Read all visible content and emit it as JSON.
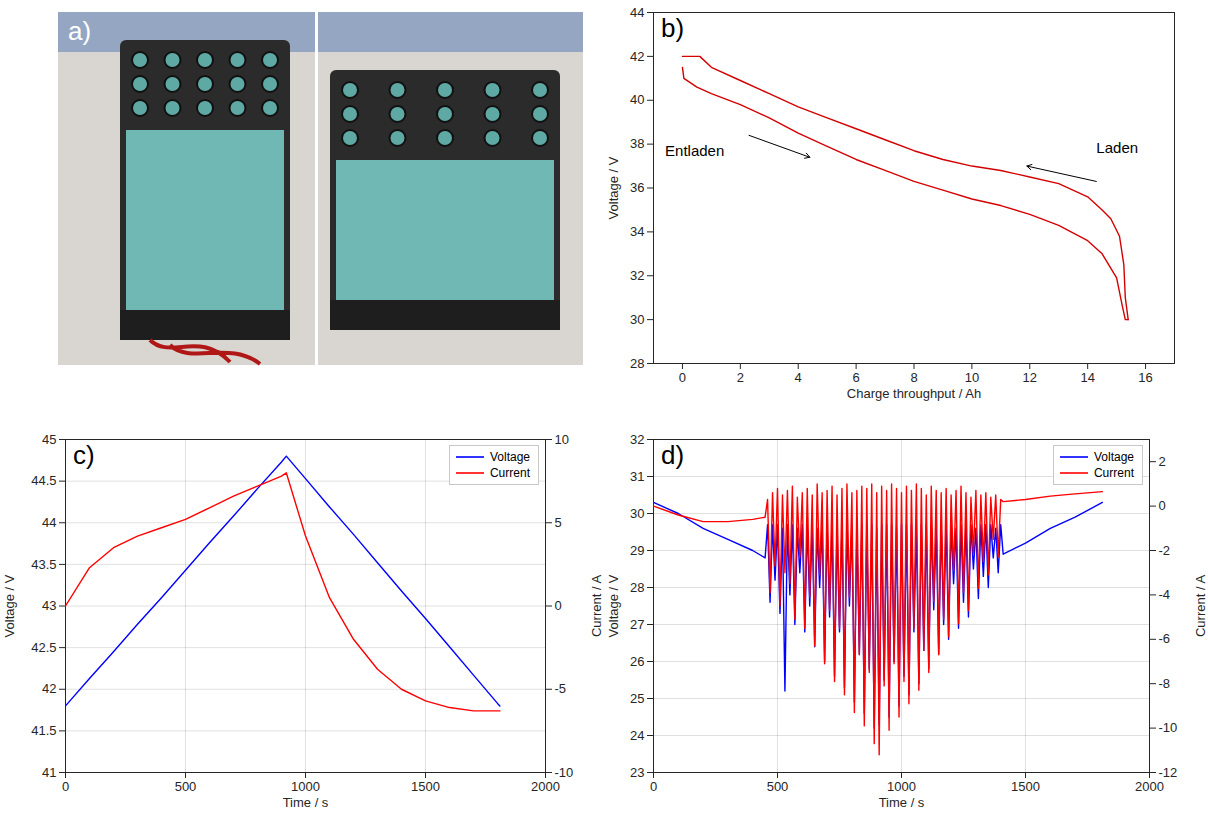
{
  "chart_data": [
    {
      "type": "image",
      "panel": "a)"
    },
    {
      "type": "line",
      "panel": "b)",
      "x_label": "Charge throughput / Ah",
      "y_label": "Voltage / V",
      "xlim": [
        -1,
        17
      ],
      "xticks": [
        0,
        2,
        4,
        6,
        8,
        10,
        12,
        14,
        16
      ],
      "ylim": [
        28,
        44
      ],
      "yticks": [
        28,
        30,
        32,
        34,
        36,
        38,
        40,
        42,
        44
      ],
      "grid": false,
      "series": [
        {
          "color": "#d40000",
          "x": [
            0,
            0.05,
            0.5,
            1,
            2,
            3,
            4,
            5,
            6,
            7,
            8,
            9,
            10,
            11,
            12,
            13,
            14,
            14.5,
            15,
            15.2,
            15.3,
            15.4
          ],
          "values": [
            41.5,
            41.0,
            40.6,
            40.3,
            39.8,
            39.2,
            38.5,
            37.9,
            37.3,
            36.8,
            36.3,
            35.9,
            35.5,
            35.2,
            34.8,
            34.3,
            33.6,
            33.0,
            31.9,
            30.6,
            30.0,
            30.0
          ]
        },
        {
          "color": "#d40000",
          "x": [
            15.4,
            15.3,
            15.25,
            15.1,
            14.8,
            14.5,
            14,
            13,
            12,
            11,
            10,
            9,
            8,
            7,
            6,
            5,
            4,
            3,
            2,
            1,
            0.6,
            0
          ],
          "values": [
            30.0,
            31.0,
            32.5,
            33.8,
            34.6,
            35.0,
            35.6,
            36.2,
            36.5,
            36.8,
            37.0,
            37.3,
            37.7,
            38.2,
            38.7,
            39.2,
            39.7,
            40.3,
            40.9,
            41.5,
            42.0,
            42.0
          ]
        }
      ],
      "annotations": [
        {
          "text": "Entladen",
          "x": -0.6,
          "y": 37.7,
          "arrow": {
            "x1": 2.3,
            "y1": 38.4,
            "x2": 4.4,
            "y2": 37.4
          }
        },
        {
          "text": "Laden",
          "x": 14.3,
          "y": 37.8,
          "arrow": {
            "x1": 14.3,
            "y1": 36.3,
            "x2": 11.9,
            "y2": 37.0
          }
        }
      ]
    },
    {
      "type": "line",
      "panel": "c)",
      "x_label": "Time / s",
      "y_label": "Voltage / V",
      "y2_label": "Current / A",
      "xlim": [
        0,
        2000
      ],
      "xticks": [
        0,
        500,
        1000,
        1500,
        2000
      ],
      "ylim": [
        41,
        45
      ],
      "yticks": [
        41,
        41.5,
        42,
        42.5,
        43,
        43.5,
        44,
        44.5,
        45
      ],
      "y2lim": [
        -10,
        10
      ],
      "y2ticks": [
        -10,
        -5,
        0,
        5,
        10
      ],
      "grid": true,
      "legend": "top-right",
      "x": [
        0,
        100,
        200,
        300,
        400,
        500,
        600,
        700,
        800,
        900,
        920,
        1000,
        1100,
        1200,
        1300,
        1400,
        1500,
        1600,
        1700,
        1800,
        1810
      ],
      "series": [
        {
          "name": "Voltage",
          "color": "#0000ff",
          "values": [
            41.8,
            42.13,
            42.45,
            42.78,
            43.1,
            43.43,
            43.76,
            44.08,
            44.41,
            44.73,
            44.8,
            44.53,
            44.19,
            43.86,
            43.52,
            43.18,
            42.85,
            42.51,
            42.17,
            41.83,
            41.8
          ]
        },
        {
          "name": "Current",
          "color": "#ff0000",
          "axis": "y2",
          "values": [
            0,
            2.3,
            3.5,
            4.2,
            4.7,
            5.2,
            5.9,
            6.6,
            7.2,
            7.8,
            8.0,
            4.2,
            0.5,
            -2.0,
            -3.8,
            -5.0,
            -5.7,
            -6.1,
            -6.3,
            -6.3,
            -6.3
          ]
        }
      ]
    },
    {
      "type": "line",
      "panel": "d)",
      "x_label": "Time / s",
      "y_label": "Voltage / V",
      "y2_label": "Current / A",
      "xlim": [
        0,
        2000
      ],
      "xticks": [
        0,
        500,
        1000,
        1500,
        2000
      ],
      "ylim": [
        23,
        32
      ],
      "yticks": [
        23,
        24,
        25,
        26,
        27,
        28,
        29,
        30,
        31,
        32
      ],
      "y2lim": [
        -12,
        3
      ],
      "y2ticks": [
        -12,
        -10,
        -8,
        -6,
        -4,
        -2,
        0,
        2
      ],
      "grid": true,
      "legend": "top-right",
      "x": [
        0,
        100,
        200,
        300,
        400,
        450,
        460,
        470,
        480,
        490,
        500,
        510,
        520,
        530,
        540,
        550,
        560,
        570,
        580,
        590,
        600,
        610,
        620,
        630,
        640,
        650,
        660,
        670,
        680,
        690,
        700,
        710,
        720,
        730,
        740,
        750,
        760,
        770,
        780,
        790,
        800,
        810,
        820,
        830,
        840,
        850,
        860,
        870,
        880,
        890,
        900,
        910,
        920,
        930,
        940,
        950,
        960,
        970,
        980,
        990,
        1000,
        1010,
        1020,
        1030,
        1040,
        1050,
        1060,
        1070,
        1080,
        1090,
        1100,
        1110,
        1120,
        1130,
        1140,
        1150,
        1160,
        1170,
        1180,
        1190,
        1200,
        1210,
        1220,
        1230,
        1240,
        1250,
        1260,
        1270,
        1280,
        1290,
        1300,
        1310,
        1320,
        1330,
        1340,
        1350,
        1360,
        1370,
        1380,
        1390,
        1400,
        1410,
        1500,
        1600,
        1700,
        1810
      ],
      "series": [
        {
          "name": "Voltage",
          "color": "#0000ff",
          "values": [
            30.3,
            30.0,
            29.6,
            29.3,
            29.0,
            28.8,
            29.7,
            27.6,
            29.7,
            28.2,
            29.7,
            27.3,
            29.6,
            25.2,
            29.7,
            27.8,
            29.7,
            27.0,
            29.6,
            28.4,
            29.7,
            26.8,
            29.7,
            27.5,
            29.7,
            26.4,
            29.6,
            28.0,
            29.7,
            26.0,
            29.7,
            27.2,
            29.7,
            25.6,
            29.6,
            26.8,
            29.7,
            25.3,
            29.7,
            27.5,
            29.7,
            24.9,
            29.6,
            26.2,
            29.7,
            24.6,
            29.7,
            25.8,
            29.7,
            24.2,
            29.6,
            24.3,
            29.7,
            25.5,
            29.7,
            24.5,
            29.7,
            26.0,
            29.6,
            24.8,
            29.7,
            25.6,
            29.7,
            25.1,
            29.7,
            26.8,
            29.6,
            25.4,
            29.7,
            26.3,
            29.7,
            25.8,
            29.7,
            27.4,
            29.6,
            26.2,
            29.7,
            27.0,
            29.7,
            26.6,
            29.7,
            28.1,
            29.6,
            26.9,
            29.7,
            27.6,
            29.7,
            27.2,
            29.7,
            28.5,
            29.6,
            27.7,
            29.7,
            28.3,
            29.7,
            28.0,
            29.7,
            28.8,
            29.6,
            28.4,
            29.7,
            28.9,
            29.2,
            29.6,
            29.9,
            30.3
          ]
        },
        {
          "name": "Current",
          "color": "#ff0000",
          "axis": "y2",
          "values": [
            0,
            -0.4,
            -0.7,
            -0.7,
            -0.6,
            -0.5,
            0.3,
            -3.9,
            0.6,
            -2.7,
            0.8,
            -4.5,
            0.5,
            -3.0,
            0.7,
            -3.5,
            0.9,
            -5.1,
            0.4,
            -2.3,
            0.6,
            -5.5,
            0.8,
            -4.1,
            0.5,
            -6.3,
            1.0,
            -3.1,
            0.6,
            -7.1,
            0.7,
            -4.7,
            0.9,
            -7.9,
            0.5,
            -5.5,
            0.8,
            -8.5,
            1.0,
            -4.1,
            0.6,
            -9.3,
            0.7,
            -6.7,
            0.9,
            -9.9,
            0.8,
            -7.5,
            1.0,
            -10.7,
            0.6,
            -11.2,
            0.9,
            -8.1,
            0.7,
            -10.1,
            1.0,
            -7.1,
            0.8,
            -9.5,
            0.6,
            -7.9,
            0.9,
            -8.9,
            0.7,
            -5.5,
            1.0,
            -8.3,
            0.8,
            -6.5,
            0.5,
            -7.5,
            0.9,
            -4.3,
            0.7,
            -6.7,
            0.6,
            -5.1,
            0.8,
            -5.9,
            0.5,
            -2.9,
            0.7,
            -5.3,
            0.9,
            -3.9,
            0.6,
            -4.7,
            0.4,
            -2.1,
            0.7,
            -3.7,
            0.5,
            -2.5,
            0.6,
            -3.1,
            0.4,
            -1.5,
            0.5,
            -2.3,
            0.3,
            0.2,
            0.3,
            0.45,
            0.55,
            0.65
          ]
        }
      ]
    }
  ]
}
